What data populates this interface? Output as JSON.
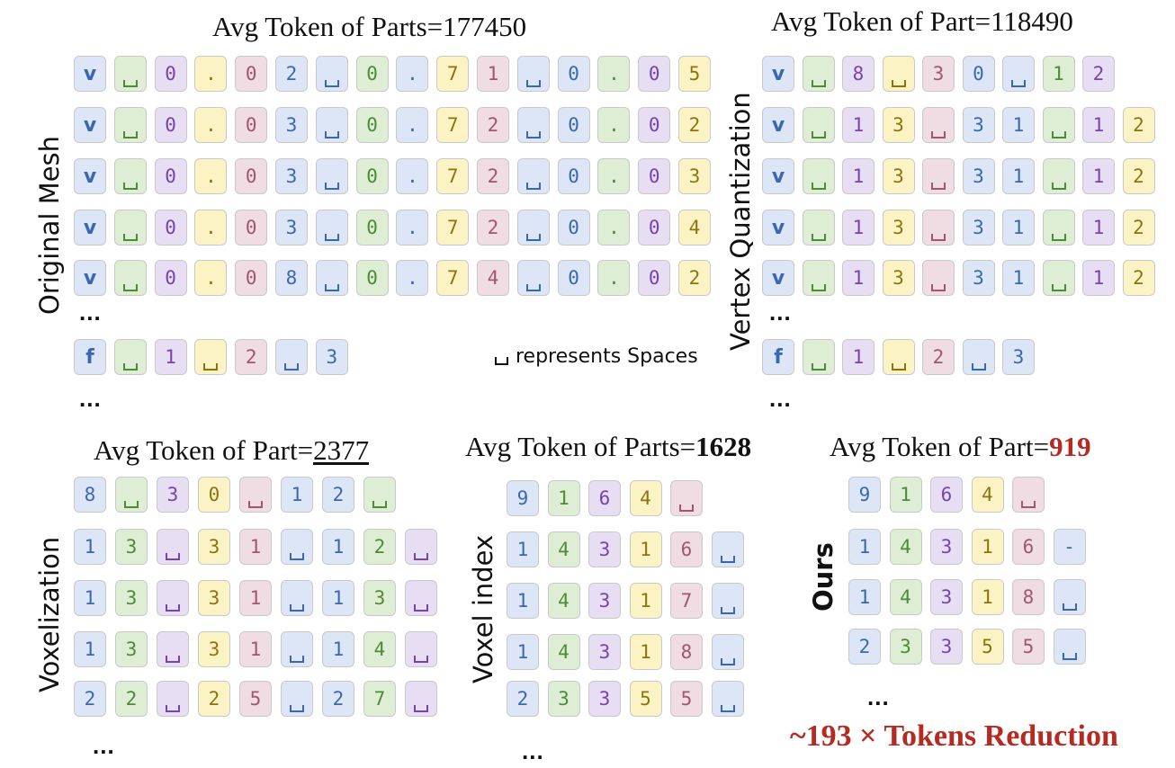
{
  "titles": {
    "original_mesh": {
      "prefix": "Avg Token of Parts=",
      "value": "177450"
    },
    "vertex_quantization": {
      "prefix": "Avg Token of Part=",
      "value": "118490"
    },
    "voxelization": {
      "prefix": "Avg Token of Part=",
      "value": "2377"
    },
    "voxel_index": {
      "prefix": "Avg Token of Parts=",
      "value": "1628"
    },
    "ours": {
      "prefix": "Avg Token of Part=",
      "value": "919"
    }
  },
  "labels": {
    "original_mesh": "Original Mesh",
    "vertex_quantization": "Vertex Quantization",
    "voxelization": "Voxelization",
    "voxel_index": "Voxel index",
    "ours": "Ours"
  },
  "legend": "represents Spaces",
  "reduction": "~193 × Tokens Reduction",
  "ellipsis": "...",
  "colors": {
    "blue": "#dce6f6",
    "green": "#deeed5",
    "purple": "#e7def4",
    "yellow": "#fcf3c5",
    "pink": "#f0dde3",
    "highlight_red": "#b52a21"
  },
  "panels": {
    "original_mesh": [
      [
        "v",
        "_",
        "0",
        ".",
        "0",
        "2",
        "_",
        "0",
        ".",
        "7",
        "1",
        "_",
        "0",
        ".",
        "0",
        "5"
      ],
      [
        "v",
        "_",
        "0",
        ".",
        "0",
        "3",
        "_",
        "0",
        ".",
        "7",
        "2",
        "_",
        "0",
        ".",
        "0",
        "2"
      ],
      [
        "v",
        "_",
        "0",
        ".",
        "0",
        "3",
        "_",
        "0",
        ".",
        "7",
        "2",
        "_",
        "0",
        ".",
        "0",
        "3"
      ],
      [
        "v",
        "_",
        "0",
        ".",
        "0",
        "3",
        "_",
        "0",
        ".",
        "7",
        "2",
        "_",
        "0",
        ".",
        "0",
        "4"
      ],
      [
        "v",
        "_",
        "0",
        ".",
        "0",
        "8",
        "_",
        "0",
        ".",
        "7",
        "4",
        "_",
        "0",
        ".",
        "0",
        "2"
      ],
      [
        "f",
        "_",
        "1",
        "_",
        "2",
        "_",
        "3"
      ]
    ],
    "vertex_quantization": [
      [
        "v",
        "_",
        "8",
        "_",
        "3",
        "0",
        "_",
        "1",
        "2"
      ],
      [
        "v",
        "_",
        "1",
        "3",
        "_",
        "3",
        "1",
        "_",
        "1",
        "2"
      ],
      [
        "v",
        "_",
        "1",
        "3",
        "_",
        "3",
        "1",
        "_",
        "1",
        "2"
      ],
      [
        "v",
        "_",
        "1",
        "3",
        "_",
        "3",
        "1",
        "_",
        "1",
        "2"
      ],
      [
        "v",
        "_",
        "1",
        "3",
        "_",
        "3",
        "1",
        "_",
        "1",
        "2"
      ],
      [
        "f",
        "_",
        "1",
        "_",
        "2",
        "_",
        "3"
      ]
    ],
    "voxelization": [
      [
        "8",
        "_",
        "3",
        "0",
        "_",
        "1",
        "2",
        "_"
      ],
      [
        "1",
        "3",
        "_",
        "3",
        "1",
        "_",
        "1",
        "2",
        "_"
      ],
      [
        "1",
        "3",
        "_",
        "3",
        "1",
        "_",
        "1",
        "3",
        "_"
      ],
      [
        "1",
        "3",
        "_",
        "3",
        "1",
        "_",
        "1",
        "4",
        "_"
      ],
      [
        "2",
        "2",
        "_",
        "2",
        "5",
        "_",
        "2",
        "7",
        "_"
      ]
    ],
    "voxel_index": [
      [
        "9",
        "1",
        "6",
        "4",
        "_"
      ],
      [
        "1",
        "4",
        "3",
        "1",
        "6",
        "_"
      ],
      [
        "1",
        "4",
        "3",
        "1",
        "7",
        "_"
      ],
      [
        "1",
        "4",
        "3",
        "1",
        "8",
        "_"
      ],
      [
        "2",
        "3",
        "3",
        "5",
        "5",
        "_"
      ]
    ],
    "ours": [
      [
        "9",
        "1",
        "6",
        "4",
        "_"
      ],
      [
        "1",
        "4",
        "3",
        "1",
        "6",
        "-"
      ],
      [
        "1",
        "4",
        "3",
        "1",
        "8",
        "_"
      ],
      [
        "2",
        "3",
        "3",
        "5",
        "5",
        "_"
      ]
    ]
  }
}
